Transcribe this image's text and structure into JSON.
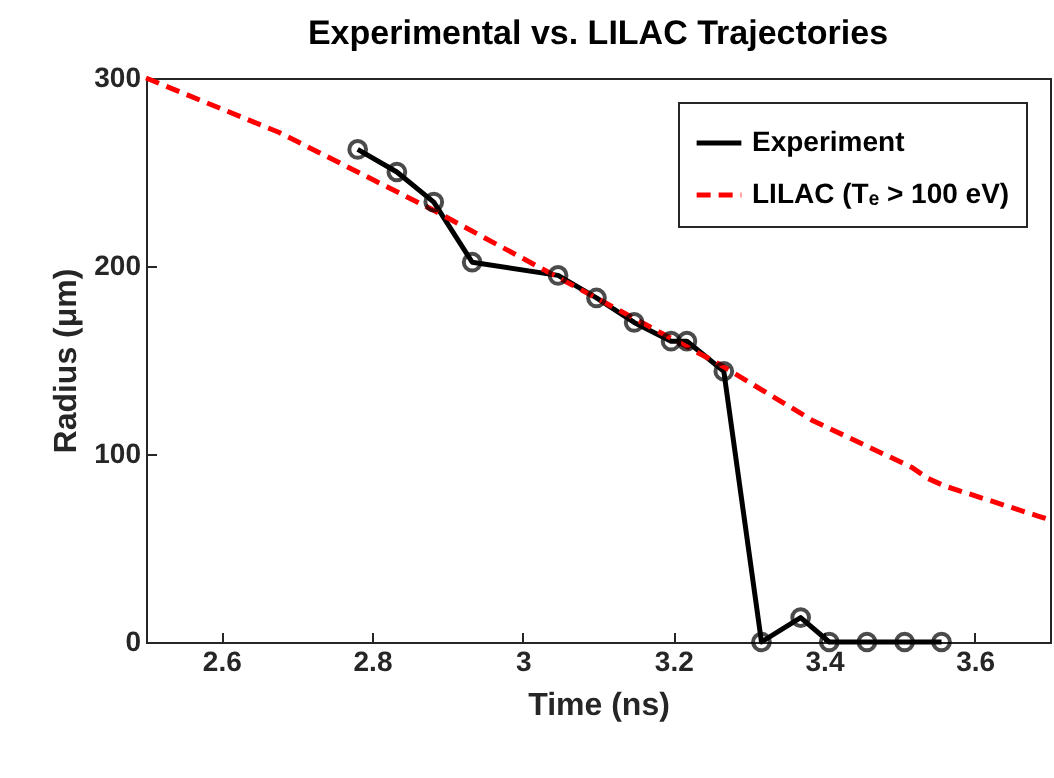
{
  "chart_data": {
    "type": "line",
    "title": "Experimental vs. LILAC Trajectories",
    "xlabel": "Time (ns)",
    "ylabel": "Radius (μm)",
    "xlim": [
      2.5,
      3.7
    ],
    "xticks": [
      2.6,
      2.8,
      3,
      3.2,
      3.4,
      3.6
    ],
    "ylim": [
      0,
      300
    ],
    "yticks": [
      0,
      100,
      200,
      300
    ],
    "grid": false,
    "legend": "top right",
    "series": [
      {
        "name": "Experiment",
        "color": "#000000",
        "marker": "circle",
        "line_style": "solid",
        "x": [
          2.781,
          2.833,
          2.882,
          2.933,
          3.047,
          3.098,
          3.148,
          3.197,
          3.218,
          3.267,
          3.317,
          3.369,
          3.407,
          3.457,
          3.507,
          3.556
        ],
        "values": [
          262,
          250,
          234,
          202,
          195,
          183,
          170,
          160,
          160,
          144,
          0,
          13,
          0,
          0,
          0,
          0
        ]
      },
      {
        "name": "LILAC (Tₑ > 100 eV)",
        "color": "#ff0000",
        "marker": "none",
        "line_style": "dashed",
        "x": [
          2.5,
          2.677,
          2.88,
          3.093,
          3.26,
          3.384,
          3.516,
          3.538,
          3.56,
          3.684,
          3.7
        ],
        "values": [
          300,
          271,
          230,
          184,
          148,
          118,
          93,
          87,
          83,
          67,
          65
        ]
      }
    ]
  }
}
